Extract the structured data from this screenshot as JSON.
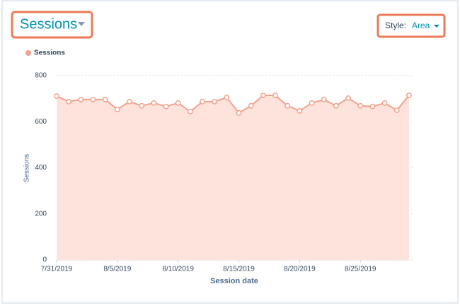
{
  "chart_data": {
    "type": "area",
    "title": "Sessions",
    "style_label": "Style:",
    "style_value": "Area",
    "categories": [
      "7/31/2019",
      null,
      null,
      null,
      null,
      "8/5/2019",
      null,
      null,
      null,
      null,
      "8/10/2019",
      null,
      null,
      null,
      null,
      "8/15/2019",
      null,
      null,
      null,
      null,
      "8/20/2019",
      null,
      null,
      null,
      null,
      "8/25/2019",
      null,
      null,
      null,
      null
    ],
    "series": [
      {
        "name": "Sessions",
        "color": "#f2a28c",
        "values": [
          711,
          687,
          696,
          696,
          696,
          653,
          687,
          669,
          681,
          666,
          681,
          644,
          687,
          687,
          705,
          638,
          669,
          714,
          714,
          669,
          647,
          681,
          696,
          669,
          702,
          669,
          666,
          681,
          650,
          714
        ]
      }
    ],
    "ylim": [
      0,
      800
    ],
    "yticks": [
      0,
      200,
      400,
      600,
      800
    ],
    "grid": true,
    "x_label": "Session date",
    "y_label": "Sessions"
  }
}
